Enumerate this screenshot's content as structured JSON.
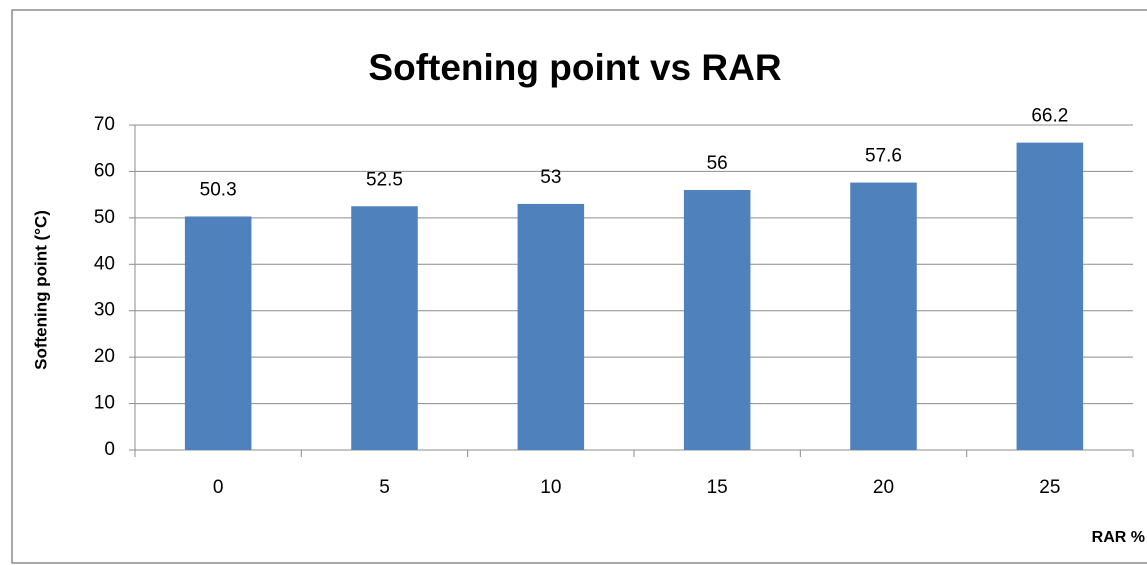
{
  "chart_data": {
    "type": "bar",
    "title": "Softening point vs RAR",
    "xlabel": "RAR %",
    "ylabel": "Softening point (°C)",
    "categories": [
      "0",
      "5",
      "10",
      "15",
      "20",
      "25"
    ],
    "values": [
      50.3,
      52.5,
      53,
      56,
      57.6,
      66.2
    ],
    "color": "#4f81bd",
    "ylim": [
      0,
      70
    ],
    "yticks": [
      0,
      10,
      20,
      30,
      40,
      50,
      60,
      70
    ],
    "grid": true
  }
}
